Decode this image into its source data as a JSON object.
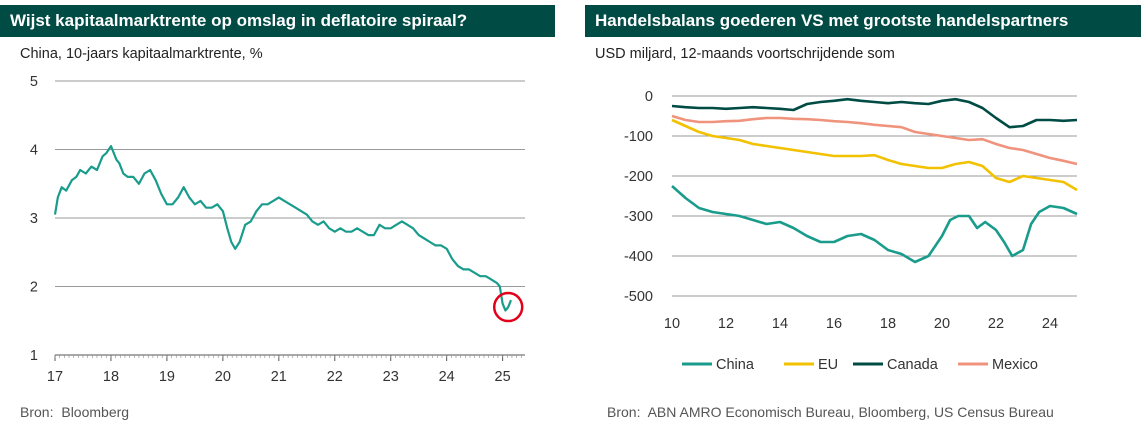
{
  "left": {
    "title": "Wijst kapitaalmarktrente op omslag in deflatoire spiraal?",
    "subtitle": "China, 10-jaars kapitaalmarktrente, %",
    "source_label": "Bron:",
    "source_text": "Bloomberg"
  },
  "right": {
    "title": "Handelsbalans goederen VS met grootste handelspartners",
    "subtitle": "USD miljard, 12-maands voortschrijdende som",
    "source_label": "Bron:",
    "source_text": "ABN AMRO Economisch Bureau, Bloomberg, US Census Bureau"
  },
  "chart_data": [
    {
      "type": "line",
      "title": "Wijst kapitaalmarktrente op omslag in deflatoire spiraal?",
      "subtitle": "China, 10-jaars kapitaalmarktrente, %",
      "ylim": [
        1,
        5
      ],
      "yticks": [
        1,
        2,
        3,
        4,
        5
      ],
      "xlim": [
        2017,
        2025.4
      ],
      "xticks": [
        17,
        18,
        19,
        20,
        21,
        22,
        23,
        24,
        25
      ],
      "grid": "horizontal",
      "highlight": {
        "x": 2025.1,
        "y": 1.7,
        "shape": "circle",
        "color": "#e3001b"
      },
      "series": [
        {
          "color": "#1a9c8c",
          "x": [
            2017.0,
            2017.05,
            2017.12,
            2017.2,
            2017.3,
            2017.38,
            2017.45,
            2017.55,
            2017.65,
            2017.75,
            2017.85,
            2017.92,
            2018.0,
            2018.05,
            2018.1,
            2018.15,
            2018.22,
            2018.3,
            2018.4,
            2018.5,
            2018.6,
            2018.7,
            2018.8,
            2018.9,
            2019.0,
            2019.1,
            2019.2,
            2019.3,
            2019.4,
            2019.5,
            2019.6,
            2019.7,
            2019.8,
            2019.9,
            2020.0,
            2020.08,
            2020.15,
            2020.22,
            2020.3,
            2020.4,
            2020.5,
            2020.6,
            2020.7,
            2020.8,
            2020.9,
            2021.0,
            2021.1,
            2021.2,
            2021.3,
            2021.4,
            2021.5,
            2021.6,
            2021.7,
            2021.8,
            2021.9,
            2022.0,
            2022.1,
            2022.2,
            2022.3,
            2022.4,
            2022.5,
            2022.6,
            2022.7,
            2022.8,
            2022.9,
            2023.0,
            2023.1,
            2023.2,
            2023.3,
            2023.4,
            2023.5,
            2023.6,
            2023.7,
            2023.8,
            2023.9,
            2024.0,
            2024.1,
            2024.2,
            2024.3,
            2024.4,
            2024.5,
            2024.6,
            2024.7,
            2024.8,
            2024.9,
            2024.95,
            2025.0,
            2025.05,
            2025.1,
            2025.15
          ],
          "y": [
            3.05,
            3.3,
            3.45,
            3.4,
            3.55,
            3.6,
            3.7,
            3.65,
            3.75,
            3.7,
            3.9,
            3.95,
            4.05,
            3.95,
            3.85,
            3.8,
            3.65,
            3.6,
            3.6,
            3.5,
            3.65,
            3.7,
            3.55,
            3.35,
            3.2,
            3.2,
            3.3,
            3.45,
            3.3,
            3.2,
            3.25,
            3.15,
            3.15,
            3.2,
            3.1,
            2.85,
            2.65,
            2.55,
            2.65,
            2.9,
            2.95,
            3.1,
            3.2,
            3.2,
            3.25,
            3.3,
            3.25,
            3.2,
            3.15,
            3.1,
            3.05,
            2.95,
            2.9,
            2.95,
            2.85,
            2.8,
            2.85,
            2.8,
            2.8,
            2.85,
            2.8,
            2.75,
            2.75,
            2.9,
            2.85,
            2.85,
            2.9,
            2.95,
            2.9,
            2.85,
            2.75,
            2.7,
            2.65,
            2.6,
            2.6,
            2.55,
            2.4,
            2.3,
            2.25,
            2.25,
            2.2,
            2.15,
            2.15,
            2.1,
            2.05,
            2.0,
            1.75,
            1.65,
            1.7,
            1.8
          ]
        }
      ]
    },
    {
      "type": "line",
      "title": "Handelsbalans goederen VS met grootste handelspartners",
      "subtitle": "USD miljard, 12-maands voortschrijdende som",
      "ylim": [
        -500,
        0
      ],
      "yticks": [
        0,
        -100,
        -200,
        -300,
        -400,
        -500
      ],
      "xlim": [
        2010,
        2025
      ],
      "xticks": [
        10,
        12,
        14,
        16,
        18,
        20,
        22,
        24
      ],
      "grid": "horizontal",
      "legend": "bottom",
      "series": [
        {
          "name": "China",
          "color": "#1a9c8c",
          "x": [
            2010,
            2010.5,
            2011,
            2011.5,
            2012,
            2012.5,
            2013,
            2013.5,
            2014,
            2014.5,
            2015,
            2015.5,
            2016,
            2016.5,
            2017,
            2017.5,
            2018,
            2018.5,
            2019,
            2019.5,
            2020,
            2020.3,
            2020.6,
            2021,
            2021.3,
            2021.6,
            2022,
            2022.3,
            2022.6,
            2023,
            2023.3,
            2023.6,
            2024,
            2024.5,
            2025
          ],
          "y": [
            -225,
            -255,
            -280,
            -290,
            -295,
            -300,
            -310,
            -320,
            -315,
            -330,
            -350,
            -365,
            -365,
            -350,
            -345,
            -360,
            -385,
            -395,
            -415,
            -400,
            -350,
            -310,
            -300,
            -300,
            -330,
            -315,
            -335,
            -365,
            -400,
            -385,
            -320,
            -290,
            -275,
            -280,
            -295
          ]
        },
        {
          "name": "EU",
          "color": "#f2c100",
          "x": [
            2010,
            2010.5,
            2011,
            2011.5,
            2012,
            2012.5,
            2013,
            2013.5,
            2014,
            2014.5,
            2015,
            2015.5,
            2016,
            2016.5,
            2017,
            2017.5,
            2018,
            2018.5,
            2019,
            2019.5,
            2020,
            2020.5,
            2021,
            2021.5,
            2022,
            2022.5,
            2023,
            2023.5,
            2024,
            2024.5,
            2025
          ],
          "y": [
            -60,
            -75,
            -90,
            -100,
            -105,
            -110,
            -120,
            -125,
            -130,
            -135,
            -140,
            -145,
            -150,
            -150,
            -150,
            -148,
            -160,
            -170,
            -175,
            -180,
            -180,
            -170,
            -165,
            -175,
            -205,
            -215,
            -200,
            -205,
            -210,
            -215,
            -235
          ]
        },
        {
          "name": "Canada",
          "color": "#004c45",
          "x": [
            2010,
            2010.5,
            2011,
            2011.5,
            2012,
            2012.5,
            2013,
            2013.5,
            2014,
            2014.5,
            2015,
            2015.5,
            2016,
            2016.5,
            2017,
            2017.5,
            2018,
            2018.5,
            2019,
            2019.5,
            2020,
            2020.5,
            2021,
            2021.5,
            2022,
            2022.5,
            2023,
            2023.5,
            2024,
            2024.5,
            2025
          ],
          "y": [
            -25,
            -28,
            -30,
            -30,
            -32,
            -30,
            -28,
            -30,
            -32,
            -35,
            -20,
            -15,
            -12,
            -8,
            -12,
            -15,
            -18,
            -15,
            -18,
            -20,
            -12,
            -8,
            -15,
            -30,
            -55,
            -78,
            -75,
            -60,
            -60,
            -62,
            -60
          ]
        },
        {
          "name": "Mexico",
          "color": "#f0937d",
          "x": [
            2010,
            2010.5,
            2011,
            2011.5,
            2012,
            2012.5,
            2013,
            2013.5,
            2014,
            2014.5,
            2015,
            2015.5,
            2016,
            2016.5,
            2017,
            2017.5,
            2018,
            2018.5,
            2019,
            2019.5,
            2020,
            2020.5,
            2021,
            2021.5,
            2022,
            2022.5,
            2023,
            2023.5,
            2024,
            2024.5,
            2025
          ],
          "y": [
            -50,
            -60,
            -65,
            -65,
            -63,
            -62,
            -58,
            -55,
            -55,
            -57,
            -58,
            -60,
            -63,
            -65,
            -68,
            -72,
            -75,
            -78,
            -90,
            -95,
            -100,
            -105,
            -110,
            -108,
            -120,
            -130,
            -135,
            -145,
            -155,
            -162,
            -170
          ]
        }
      ]
    }
  ]
}
